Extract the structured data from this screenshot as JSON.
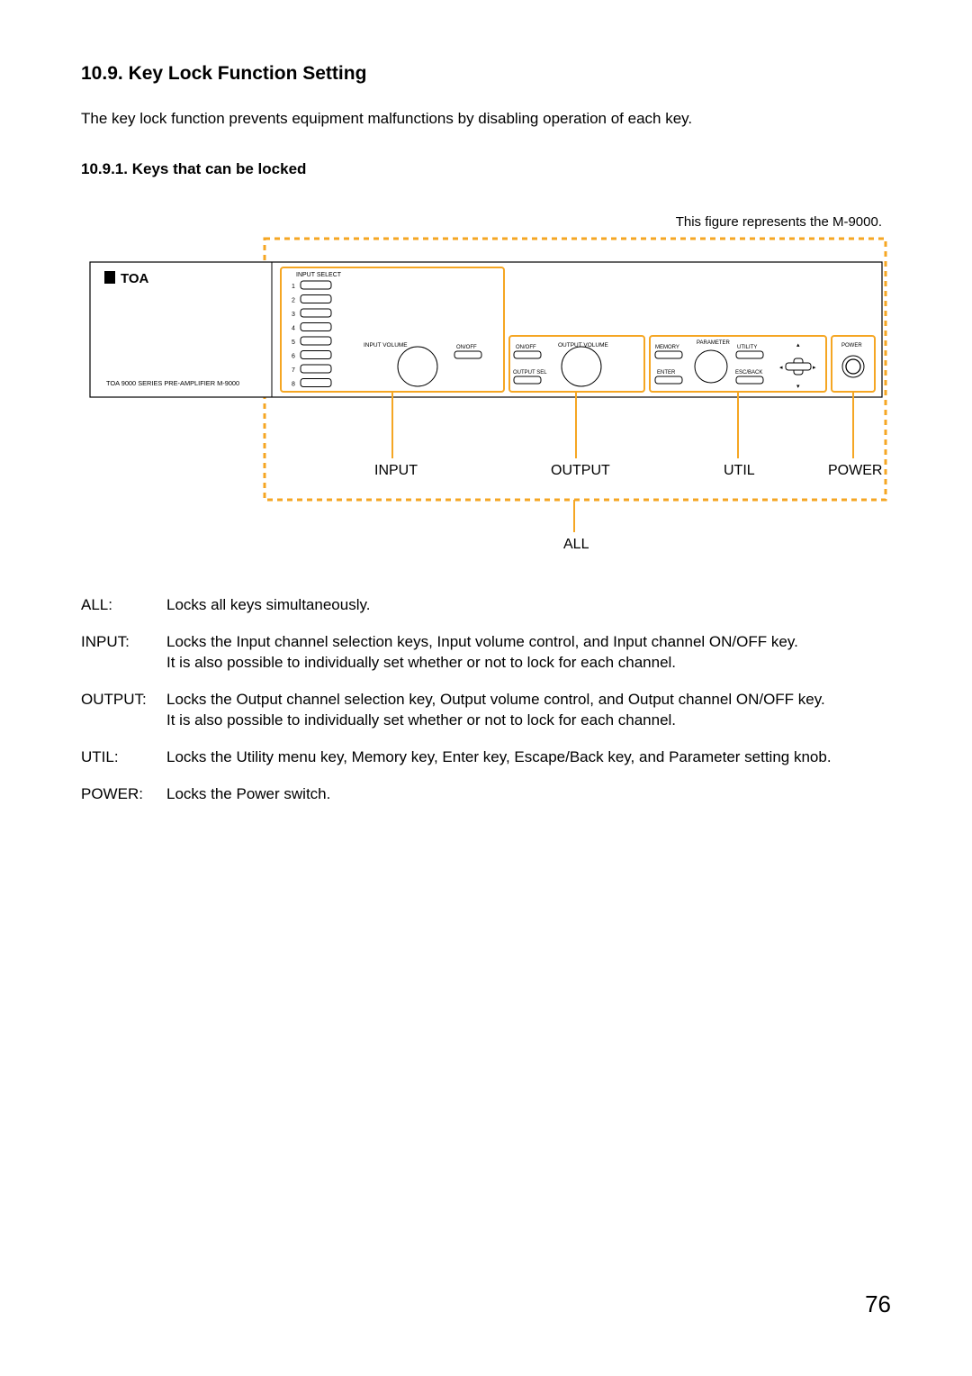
{
  "heading": {
    "section_number": "10.9.",
    "section_title": "Key Lock Function Setting",
    "intro": "The key lock function prevents equipment malfunctions by disabling operation of each key.",
    "subsection_number": "10.9.1.",
    "subsection_title": "Keys that can be locked",
    "figure_caption": "This figure represents the M-9000."
  },
  "diagram": {
    "brand": "TOA",
    "device_label": "TOA 9000 SERIES PRE-AMPLIFIER M-9000",
    "panel_labels": {
      "input_select": "INPUT SELECT",
      "input_volume": "INPUT VOLUME",
      "output_volume": "OUTPUT VOLUME",
      "output_sel": "OUTPUT SEL",
      "onoff_left": "ON/OFF",
      "onoff_right": "ON/OFF",
      "memory": "MEMORY",
      "enter": "ENTER",
      "parameter": "PARAMETER",
      "utility": "UTILITY",
      "escback": "ESC/BACK",
      "power": "POWER"
    },
    "channel_numbers": [
      "1",
      "2",
      "3",
      "4",
      "5",
      "6",
      "7",
      "8"
    ],
    "group_labels": {
      "input": "INPUT",
      "output": "OUTPUT",
      "util": "UTIL",
      "power": "POWER",
      "all": "ALL"
    },
    "colors": {
      "orange": "#f5a623",
      "panel_stroke": "#000000",
      "bg": "#ffffff",
      "text": "#000000"
    },
    "style": {
      "dash": "6 5",
      "outer_stroke_width": 3,
      "group_stroke_width": 2,
      "panel_stroke_width": 1,
      "font_small": 6.5,
      "font_tiny": 5.5,
      "font_group_label": 16,
      "font_brand": 16
    }
  },
  "definitions": [
    {
      "term": "ALL:",
      "desc": "Locks all keys simultaneously."
    },
    {
      "term": "INPUT:",
      "desc": "Locks the Input channel selection keys, Input volume control, and Input channel ON/OFF key.\nIt is also possible to individually set whether or not to lock for each channel."
    },
    {
      "term": "OUTPUT:",
      "desc": "Locks the Output channel selection key, Output volume control, and Output channel ON/OFF key.\nIt is also possible to individually set whether or not to lock for each channel."
    },
    {
      "term": "UTIL:",
      "desc": "Locks the Utility menu key, Memory key, Enter key, Escape/Back key, and Parameter setting knob."
    },
    {
      "term": "POWER:",
      "desc": "Locks the Power switch."
    }
  ],
  "page_number": "76"
}
